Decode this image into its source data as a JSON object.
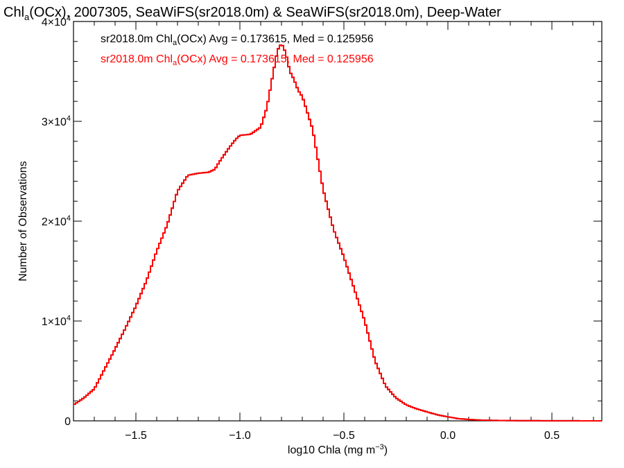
{
  "chart_data": {
    "type": "line",
    "title": {
      "pre": "Chl",
      "sub": "a",
      "post": "(OCx), 2007305, SeaWiFS(sr2018.0m) & SeaWiFS(sr2018.0m), Deep-Water"
    },
    "xlabel": {
      "pre": "log10 Chla (mg m",
      "sup": "−3",
      "post": ")"
    },
    "ylabel": "Number of Observations",
    "xlim": [
      -1.8,
      0.74
    ],
    "ylim": [
      0,
      40000
    ],
    "x_ticks": [
      {
        "value": -1.5,
        "label": "−1.5"
      },
      {
        "value": -1.0,
        "label": "−1.0"
      },
      {
        "value": -0.5,
        "label": "−0.5"
      },
      {
        "value": 0.0,
        "label": "0.0"
      },
      {
        "value": 0.5,
        "label": "0.5"
      }
    ],
    "y_ticks": [
      {
        "value": 0,
        "mant": "0",
        "exp": ""
      },
      {
        "value": 10000,
        "mant": "1×10",
        "exp": "4"
      },
      {
        "value": 20000,
        "mant": "2×10",
        "exp": "4"
      },
      {
        "value": 30000,
        "mant": "3×10",
        "exp": "4"
      },
      {
        "value": 40000,
        "mant": "4×10",
        "exp": "4"
      }
    ],
    "grid": false,
    "legend_position": "top-left",
    "series": [
      {
        "name": {
          "pre": "sr2018.0m Chl",
          "sub": "a",
          "post": "(OCx) Avg = 0.173615, Med = 0.125956"
        },
        "color": "#000000",
        "x": [
          -1.8,
          -1.75,
          -1.7,
          -1.65,
          -1.6,
          -1.55,
          -1.5,
          -1.45,
          -1.4,
          -1.35,
          -1.3,
          -1.25,
          -1.2,
          -1.15,
          -1.12,
          -1.1,
          -1.05,
          -1.02,
          -1.0,
          -0.95,
          -0.9,
          -0.87,
          -0.85,
          -0.82,
          -0.8,
          -0.78,
          -0.76,
          -0.74,
          -0.72,
          -0.7,
          -0.65,
          -0.6,
          -0.55,
          -0.5,
          -0.45,
          -0.4,
          -0.35,
          -0.3,
          -0.25,
          -0.2,
          -0.15,
          -0.1,
          -0.05,
          0.0,
          0.05,
          0.1,
          0.15,
          0.2,
          0.3,
          0.4,
          0.5,
          0.6,
          0.74
        ],
        "values": [
          1600,
          2300,
          3200,
          5200,
          7200,
          9300,
          11500,
          14000,
          17000,
          19600,
          23000,
          24600,
          24800,
          24900,
          25200,
          25900,
          27400,
          28200,
          28600,
          28700,
          29400,
          31400,
          33700,
          37100,
          37800,
          36900,
          35000,
          34200,
          33100,
          32500,
          29200,
          23200,
          19200,
          16400,
          13200,
          10000,
          6000,
          3500,
          2300,
          1600,
          1200,
          900,
          600,
          400,
          220,
          140,
          80,
          50,
          25,
          15,
          10,
          5,
          3
        ]
      },
      {
        "name": {
          "pre": "sr2018.0m Chl",
          "sub": "a",
          "post": "(OCx) Avg = 0.173615, Med = 0.125956"
        },
        "color": "#ff0000",
        "x": [
          -1.8,
          -1.75,
          -1.7,
          -1.65,
          -1.6,
          -1.55,
          -1.5,
          -1.45,
          -1.4,
          -1.35,
          -1.3,
          -1.25,
          -1.2,
          -1.15,
          -1.12,
          -1.1,
          -1.05,
          -1.02,
          -1.0,
          -0.95,
          -0.9,
          -0.87,
          -0.85,
          -0.82,
          -0.8,
          -0.78,
          -0.76,
          -0.74,
          -0.72,
          -0.7,
          -0.65,
          -0.6,
          -0.55,
          -0.5,
          -0.45,
          -0.4,
          -0.35,
          -0.3,
          -0.25,
          -0.2,
          -0.15,
          -0.1,
          -0.05,
          0.0,
          0.05,
          0.1,
          0.15,
          0.2,
          0.3,
          0.4,
          0.5,
          0.6,
          0.74
        ],
        "values": [
          1600,
          2300,
          3200,
          5200,
          7200,
          9300,
          11500,
          14000,
          17000,
          19600,
          23000,
          24600,
          24800,
          24900,
          25200,
          25900,
          27400,
          28200,
          28600,
          28700,
          29400,
          31400,
          33700,
          37100,
          37800,
          36900,
          35000,
          34200,
          33100,
          32500,
          29200,
          23200,
          19200,
          16400,
          13200,
          10000,
          6000,
          3500,
          2300,
          1600,
          1200,
          900,
          600,
          400,
          220,
          140,
          80,
          50,
          25,
          15,
          10,
          5,
          3
        ]
      }
    ]
  }
}
